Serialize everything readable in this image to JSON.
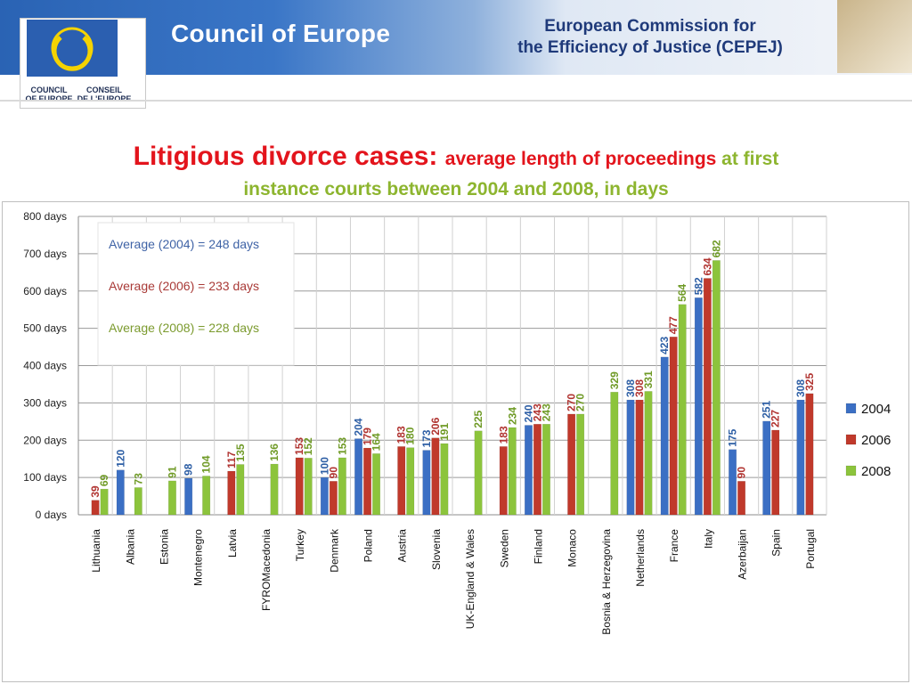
{
  "header": {
    "brand_title": "Council of Europe",
    "logo_caption_left": [
      "COUNCIL",
      "OF EUROPE"
    ],
    "logo_caption_right": [
      "CONSEIL",
      "DE L'EUROPE"
    ],
    "cepej_title_line1": "European Commission for",
    "cepej_title_line2": "the Efficiency of Justice (CEPEJ)"
  },
  "title": {
    "part1": "Litigious divorce cases: ",
    "part2": "average length of proceedings ",
    "part3": "at first",
    "line2": "instance courts between 2004 and 2008, in days"
  },
  "averages": [
    {
      "text": "Average (2004) = 248 days",
      "color": "#3f63a6"
    },
    {
      "text": "Average (2006) = 233 days",
      "color": "#a93a37"
    },
    {
      "text": "Average (2008) = 228 days",
      "color": "#7c9b2f"
    }
  ],
  "colors": {
    "2004": "#3b6fc4",
    "2006": "#c0392b",
    "2008": "#8cc43c"
  },
  "chart_data": {
    "type": "bar",
    "categories": [
      "Lithuania",
      "Albania",
      "Estonia",
      "Montenegro",
      "Latvia",
      "FYROMacedonia",
      "Turkey",
      "Denmark",
      "Poland",
      "Austria",
      "Slovenia",
      "UK-England & Wales",
      "Sweden",
      "Finland",
      "Monaco",
      "Bosnia & Herzegovina",
      "Netherlands",
      "France",
      "Italy",
      "Azerbaijan",
      "Spain",
      "Portugal"
    ],
    "series": [
      {
        "name": "2004",
        "values": [
          null,
          120,
          null,
          98,
          null,
          null,
          null,
          100,
          204,
          null,
          173,
          null,
          null,
          240,
          null,
          null,
          308,
          423,
          582,
          175,
          251,
          308
        ]
      },
      {
        "name": "2006",
        "values": [
          39,
          null,
          null,
          null,
          117,
          null,
          153,
          90,
          179,
          183,
          206,
          null,
          183,
          243,
          270,
          null,
          308,
          477,
          634,
          90,
          227,
          325
        ]
      },
      {
        "name": "2008",
        "values": [
          69,
          73,
          91,
          104,
          135,
          136,
          152,
          153,
          164,
          180,
          191,
          225,
          234,
          243,
          270,
          329,
          331,
          564,
          682,
          null,
          null,
          null
        ]
      }
    ],
    "ylim": [
      0,
      800
    ],
    "yticks": [
      0,
      100,
      200,
      300,
      400,
      500,
      600,
      700,
      800
    ],
    "ytick_labels": [
      "0 days",
      "100 days",
      "200 days",
      "300 days",
      "400 days",
      "500 days",
      "600 days",
      "700 days",
      "800 days"
    ],
    "legend": [
      "2004",
      "2006",
      "2008"
    ],
    "legend_position": "right",
    "grid": true
  }
}
